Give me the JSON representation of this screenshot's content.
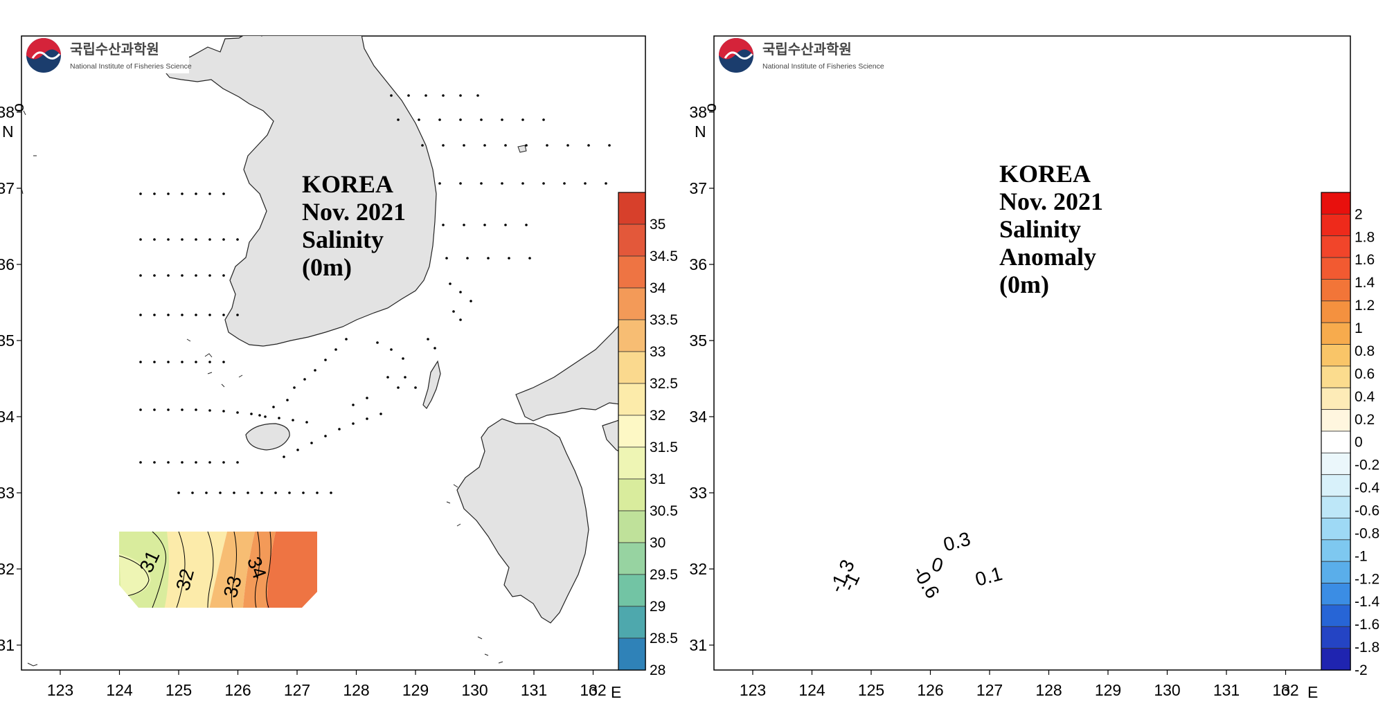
{
  "logo": {
    "name_ko": "국립수산과학원",
    "name_en": "National Institute of Fisheries Science"
  },
  "axes": {
    "lon_ticks": [
      "123",
      "124",
      "125",
      "126",
      "127",
      "128",
      "129",
      "130",
      "131",
      "132"
    ],
    "lat_ticks": [
      "31",
      "32",
      "33",
      "34",
      "35",
      "36",
      "37",
      "38"
    ],
    "lon_unit": "E",
    "lat_unit": "N",
    "degree_sign": "o"
  },
  "maps": [
    {
      "id": "salinity",
      "title_lines": [
        "KOREA",
        "Nov. 2021",
        "Salinity",
        "(0m)"
      ],
      "colorbar_labels": [
        "35",
        "34.5",
        "34",
        "33.5",
        "33",
        "32.5",
        "32",
        "31.5",
        "31",
        "30.5",
        "30",
        "29.5",
        "29",
        "28.5",
        "28"
      ],
      "colorbar_colors": [
        "#d7402b",
        "#e3583a",
        "#ee7443",
        "#f39a58",
        "#f7bd73",
        "#fad98e",
        "#fcebaa",
        "#fdf8c5",
        "#eef5b4",
        "#d9ec9d",
        "#bfe19a",
        "#97d3a1",
        "#72c4a4",
        "#4ea8ad",
        "#2f82b8"
      ],
      "contour_labels": [
        "31",
        "32",
        "33",
        "34"
      ]
    },
    {
      "id": "anomaly",
      "title_lines": [
        "KOREA",
        "Nov. 2021",
        "Salinity",
        "Anomaly",
        "(0m)"
      ],
      "colorbar_labels": [
        "2",
        "1.8",
        "1.6",
        "1.4",
        "1.2",
        "1",
        "0.8",
        "0.6",
        "0.4",
        "0.2",
        "0",
        "-0.2",
        "-0.4",
        "-0.6",
        "-0.8",
        "-1",
        "-1.2",
        "-1.4",
        "-1.6",
        "-1.8",
        "-2"
      ],
      "colorbar_colors": [
        "#e8100d",
        "#ee2a1b",
        "#f1452a",
        "#f25a31",
        "#f27538",
        "#f4913f",
        "#f7ab4d",
        "#f9c568",
        "#fbdc8e",
        "#fdebb7",
        "#fff6df",
        "#ffffff",
        "#ebf7fb",
        "#d8f1fa",
        "#bde7f8",
        "#9ed9f5",
        "#7ec8f0",
        "#5aaeea",
        "#3b8de4",
        "#2765d6",
        "#2444c4",
        "#1f24b0"
      ],
      "contour_labels": [
        "0.3",
        "0",
        "0.1",
        "-0.6",
        "-1",
        "-1.3"
      ]
    }
  ]
}
